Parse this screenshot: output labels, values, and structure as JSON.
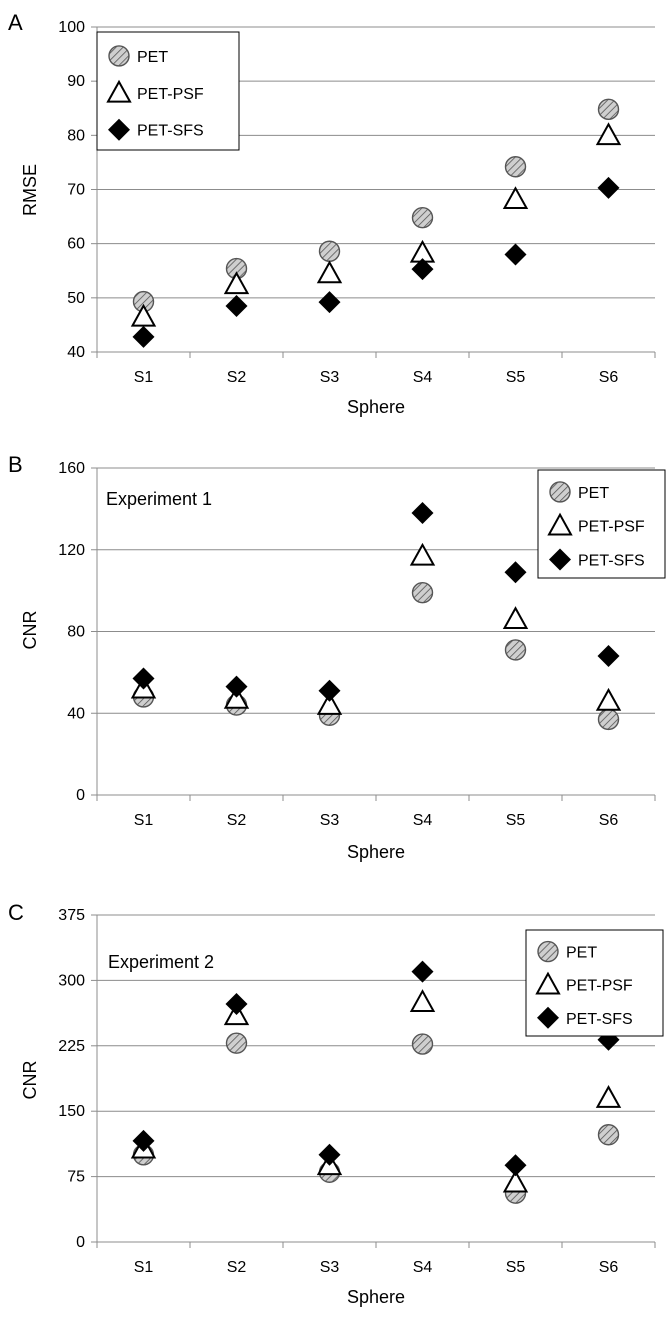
{
  "chart_data": [
    {
      "type": "scatter",
      "panel_label": "A",
      "annotation": "",
      "xlabel": "Sphere",
      "ylabel": "RMSE",
      "ylim": [
        40,
        100
      ],
      "yticks": [
        40,
        50,
        60,
        70,
        80,
        90,
        100
      ],
      "grid": "horizontal",
      "legend_position": "top-left",
      "categories": [
        "S1",
        "S2",
        "S3",
        "S4",
        "S5",
        "S6"
      ],
      "series": [
        {
          "name": "PET",
          "marker": "hatched-circle",
          "values": [
            49.3,
            55.4,
            58.6,
            64.8,
            74.2,
            84.8
          ]
        },
        {
          "name": "PET-PSF",
          "marker": "open-triangle",
          "values": [
            46.5,
            52.5,
            54.5,
            58.3,
            68.2,
            80.0
          ]
        },
        {
          "name": "PET-SFS",
          "marker": "filled-diamond",
          "values": [
            42.8,
            48.5,
            49.2,
            55.3,
            58.0,
            70.3
          ]
        }
      ]
    },
    {
      "type": "scatter",
      "panel_label": "B",
      "annotation": "Experiment 1",
      "xlabel": "Sphere",
      "ylabel": "CNR",
      "ylim": [
        0,
        160
      ],
      "yticks": [
        0,
        40,
        80,
        120,
        160
      ],
      "grid": "horizontal",
      "legend_position": "top-right",
      "categories": [
        "S1",
        "S2",
        "S3",
        "S4",
        "S5",
        "S6"
      ],
      "series": [
        {
          "name": "PET",
          "marker": "hatched-circle",
          "values": [
            48,
            44,
            39,
            99,
            71,
            37
          ]
        },
        {
          "name": "PET-PSF",
          "marker": "open-triangle",
          "values": [
            52,
            47,
            44,
            117,
            86,
            46
          ]
        },
        {
          "name": "PET-SFS",
          "marker": "filled-diamond",
          "values": [
            57,
            53,
            51,
            138,
            109,
            68
          ]
        }
      ]
    },
    {
      "type": "scatter",
      "panel_label": "C",
      "annotation": "Experiment 2",
      "xlabel": "Sphere",
      "ylabel": "CNR",
      "ylim": [
        0,
        375
      ],
      "yticks": [
        0,
        75,
        150,
        225,
        300,
        375
      ],
      "grid": "horizontal",
      "legend_position": "top-right",
      "categories": [
        "S1",
        "S2",
        "S3",
        "S4",
        "S5",
        "S6"
      ],
      "series": [
        {
          "name": "PET",
          "marker": "hatched-circle",
          "values": [
            100,
            228,
            80,
            227,
            56,
            123
          ]
        },
        {
          "name": "PET-PSF",
          "marker": "open-triangle",
          "values": [
            107,
            260,
            88,
            275,
            68,
            165
          ]
        },
        {
          "name": "PET-SFS",
          "marker": "filled-diamond",
          "values": [
            116,
            273,
            100,
            310,
            88,
            232
          ]
        }
      ]
    }
  ]
}
